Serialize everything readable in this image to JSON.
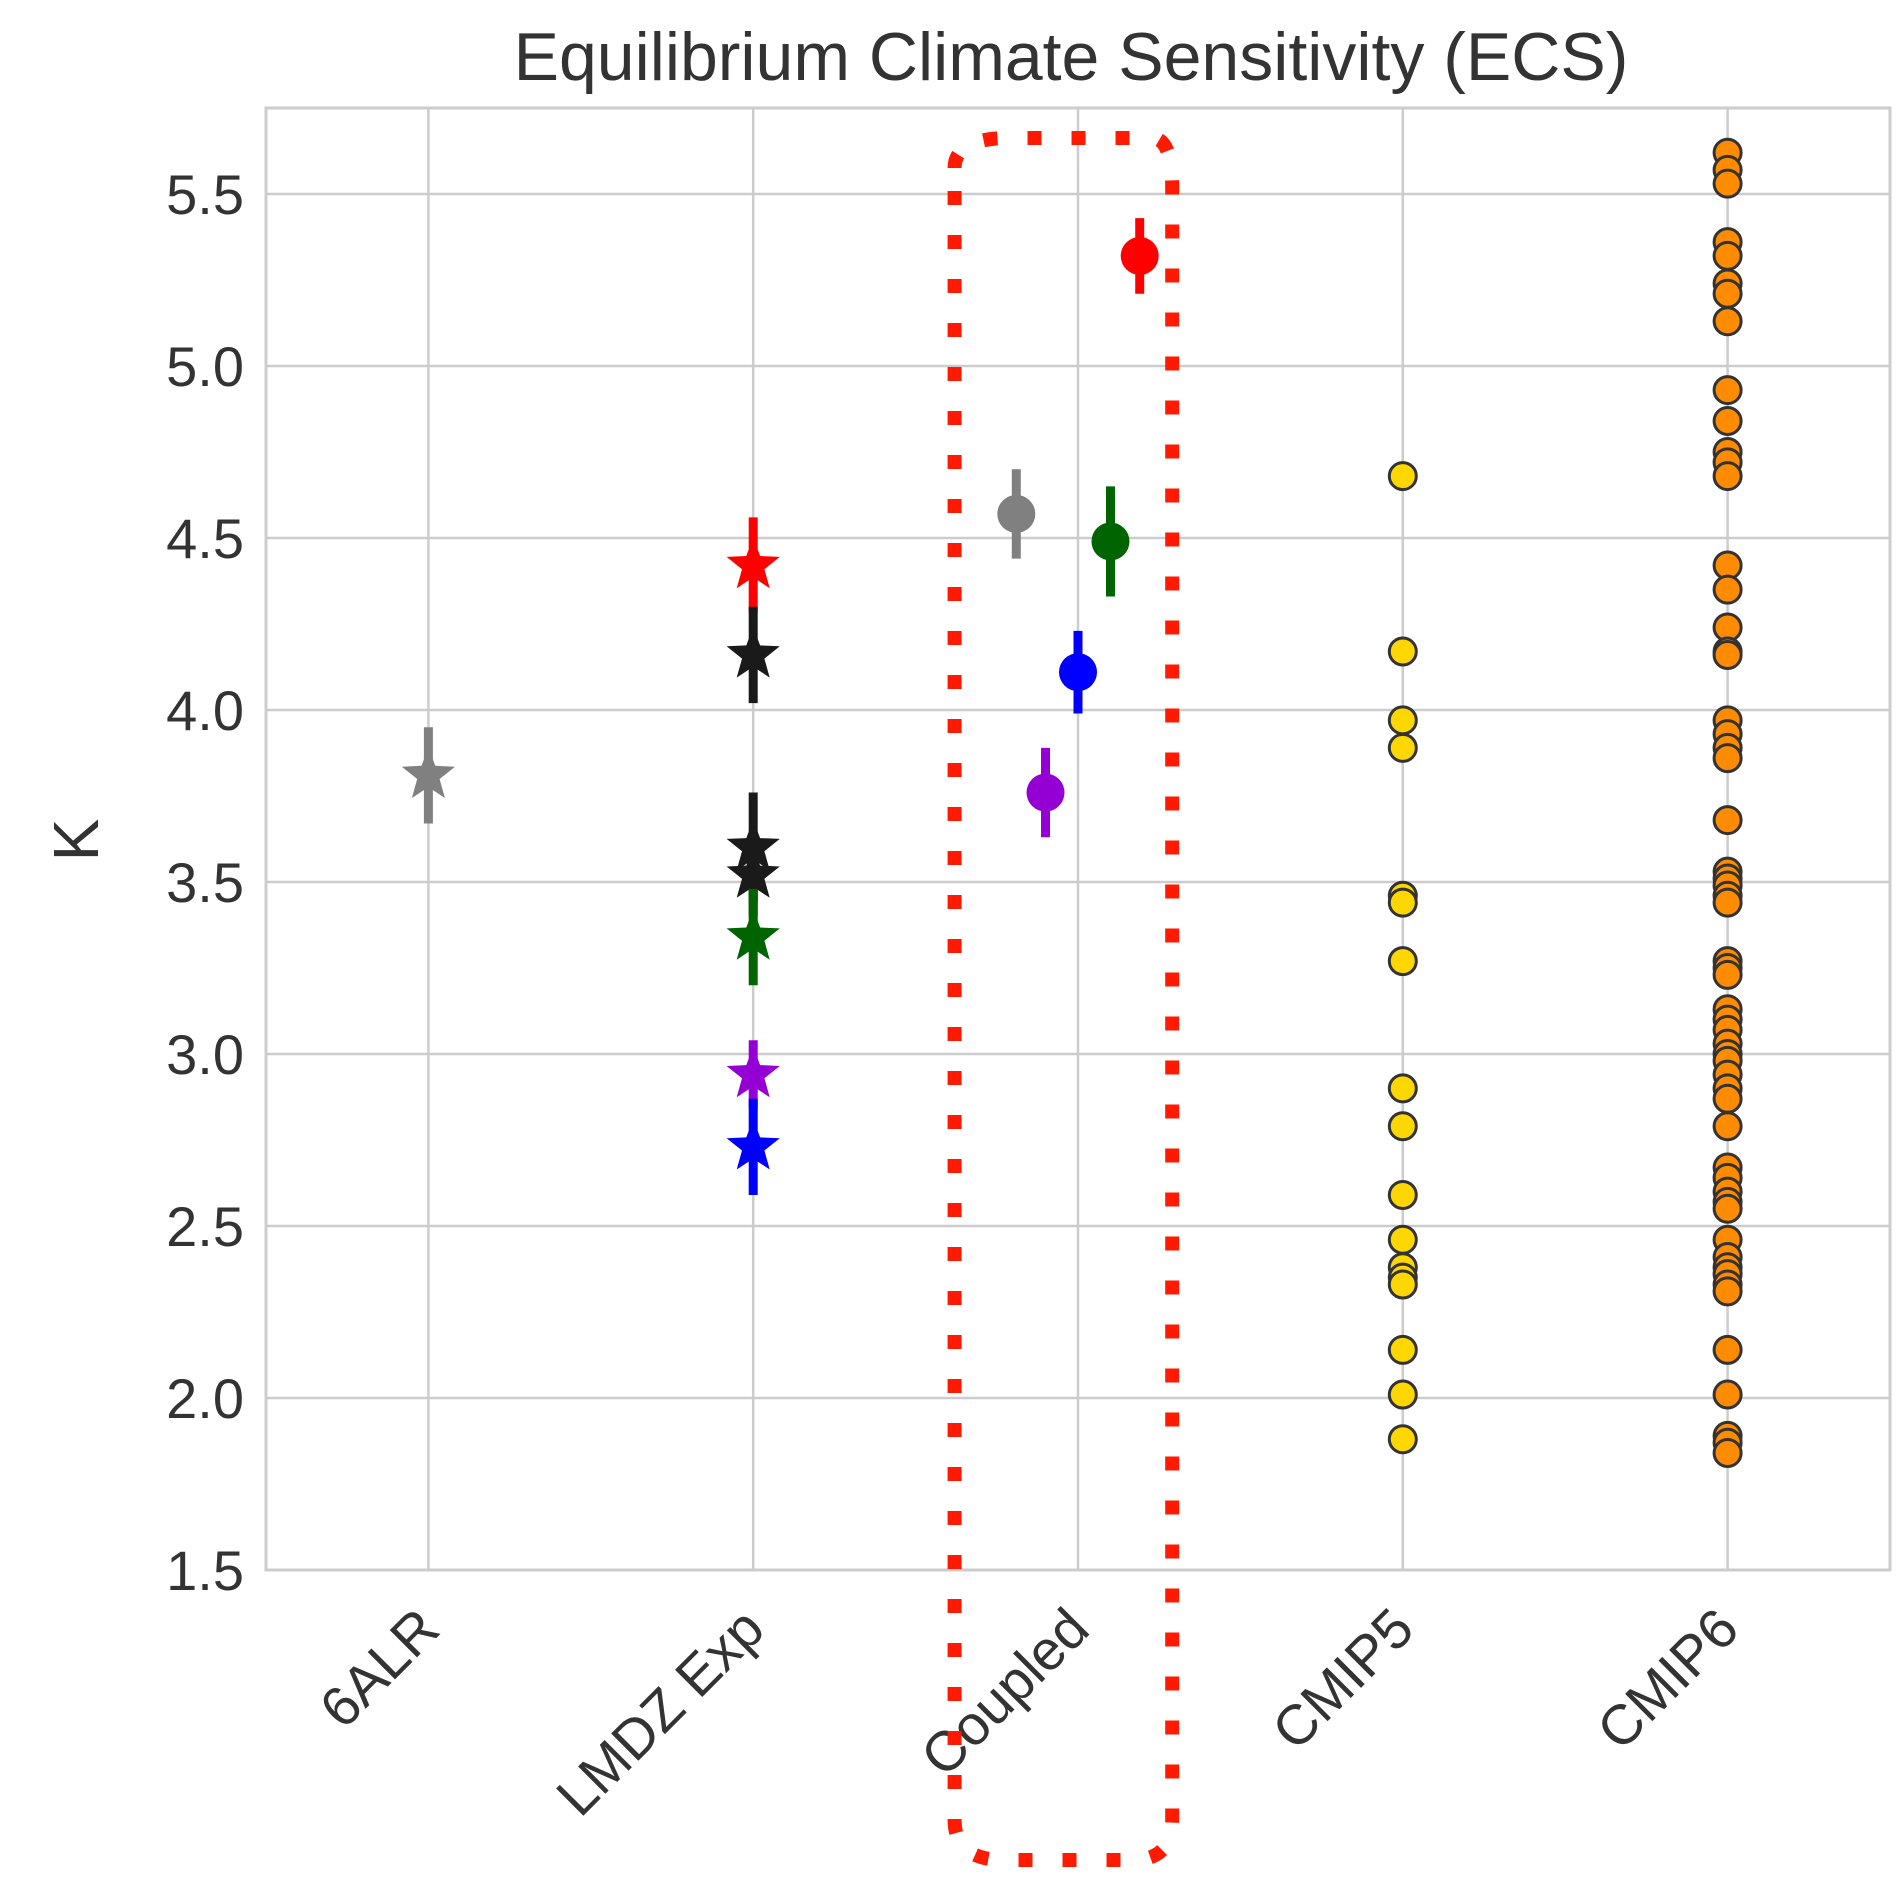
{
  "chart_data": {
    "type": "scatter",
    "title": "Equilibrium Climate Sensitivity (ECS)",
    "xlabel": "",
    "ylabel": "K",
    "ylim": [
      1.5,
      5.75
    ],
    "yticks": [
      "1.5",
      "2.0",
      "2.5",
      "3.0",
      "3.5",
      "4.0",
      "4.5",
      "5.0",
      "5.5"
    ],
    "categories": [
      "6ALR",
      "LMDZ Exp",
      "Coupled",
      "CMIP5",
      "CMIP6"
    ],
    "grid": true,
    "legend": "none",
    "highlight_category": "Coupled",
    "highlight_color": "#ff1a00",
    "series": [
      {
        "category": "6ALR",
        "marker": "star",
        "color": "#808080",
        "points": [
          {
            "y": 3.81,
            "err": 0.14
          }
        ]
      },
      {
        "category": "LMDZ Exp",
        "marker": "star",
        "points": [
          {
            "y": 4.42,
            "err": 0.14,
            "color": "#ff0000"
          },
          {
            "y": 4.16,
            "err": 0.14,
            "color": "#1a1a1a"
          },
          {
            "y": 3.6,
            "err": 0.16,
            "color": "#1a1a1a"
          },
          {
            "y": 3.52,
            "err": 0.12,
            "color": "#1a1a1a"
          },
          {
            "y": 3.34,
            "err": 0.14,
            "color": "#006400"
          },
          {
            "y": 2.94,
            "err": 0.1,
            "color": "#9400d3"
          },
          {
            "y": 2.73,
            "err": 0.14,
            "color": "#0000ff"
          }
        ]
      },
      {
        "category": "Coupled",
        "marker": "circle",
        "points": [
          {
            "y": 4.57,
            "err": 0.13,
            "color": "#808080",
            "offset": -0.19
          },
          {
            "y": 3.76,
            "err": 0.13,
            "color": "#9400d3",
            "offset": -0.1
          },
          {
            "y": 4.11,
            "err": 0.12,
            "color": "#0000ff",
            "offset": 0.0
          },
          {
            "y": 4.49,
            "err": 0.16,
            "color": "#006400",
            "offset": 0.1
          },
          {
            "y": 5.32,
            "err": 0.11,
            "color": "#ff0000",
            "offset": 0.19
          }
        ]
      },
      {
        "category": "CMIP5",
        "marker": "circle",
        "color": "#ffd700",
        "values": [
          4.68,
          4.17,
          3.97,
          3.89,
          3.46,
          3.44,
          3.27,
          2.9,
          2.79,
          2.59,
          2.46,
          2.38,
          2.35,
          2.33,
          2.14,
          2.01,
          1.88
        ]
      },
      {
        "category": "CMIP6",
        "marker": "circle",
        "color": "#ff8c00",
        "values": [
          5.62,
          5.57,
          5.53,
          5.36,
          5.32,
          5.24,
          5.21,
          5.13,
          4.93,
          4.84,
          4.75,
          4.72,
          4.68,
          4.42,
          4.35,
          4.24,
          4.17,
          4.16,
          3.97,
          3.93,
          3.89,
          3.86,
          3.68,
          3.53,
          3.51,
          3.49,
          3.46,
          3.44,
          3.27,
          3.25,
          3.23,
          3.13,
          3.1,
          3.07,
          3.03,
          3.0,
          2.98,
          2.94,
          2.9,
          2.87,
          2.79,
          2.67,
          2.64,
          2.6,
          2.57,
          2.55,
          2.46,
          2.41,
          2.38,
          2.36,
          2.33,
          2.31,
          2.14,
          2.01,
          1.89,
          1.87,
          1.84
        ]
      }
    ]
  }
}
